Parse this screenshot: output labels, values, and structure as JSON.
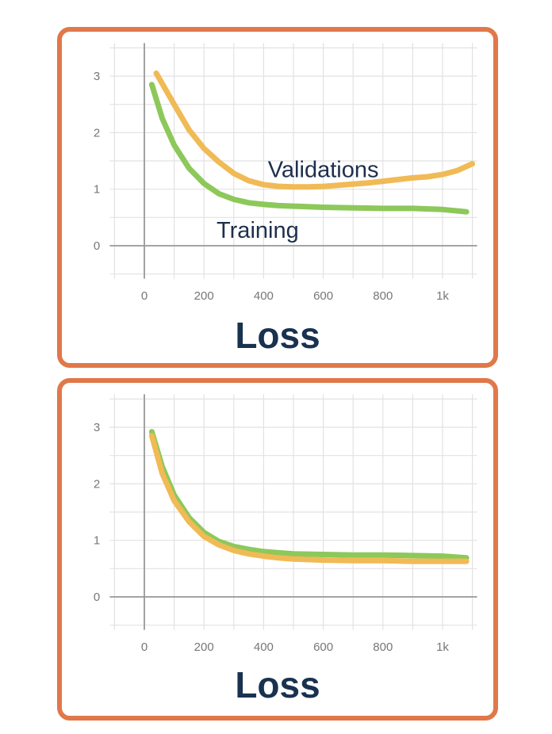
{
  "colors": {
    "frame": "#E0784A",
    "title": "#18324F",
    "training": "#8DC85A",
    "validation": "#F0BA55",
    "grid": "#E2E2E2",
    "axis": "#999999",
    "tick_text": "#777777",
    "series_label": "#1E2F4C"
  },
  "chart_data": [
    {
      "type": "line",
      "title": "Loss",
      "xlabel": "",
      "ylabel": "",
      "xlim": [
        -100,
        1100
      ],
      "ylim": [
        -0.5,
        3.5
      ],
      "x_ticks": [
        0,
        200,
        400,
        600,
        800,
        1000
      ],
      "x_tick_labels": [
        "0",
        "200",
        "400",
        "600",
        "800",
        "1k"
      ],
      "y_ticks": [
        0,
        1,
        2,
        3
      ],
      "y_tick_labels": [
        "0",
        "1",
        "2",
        "3"
      ],
      "grid": true,
      "series": [
        {
          "name": "Validations",
          "color": "#F0BA55",
          "x": [
            40,
            100,
            150,
            200,
            250,
            300,
            350,
            400,
            450,
            500,
            550,
            600,
            650,
            700,
            750,
            800,
            850,
            900,
            950,
            1000,
            1050,
            1100
          ],
          "y": [
            3.05,
            2.5,
            2.05,
            1.72,
            1.48,
            1.28,
            1.15,
            1.08,
            1.05,
            1.04,
            1.04,
            1.05,
            1.07,
            1.09,
            1.11,
            1.14,
            1.17,
            1.2,
            1.22,
            1.26,
            1.33,
            1.45
          ]
        },
        {
          "name": "Training",
          "color": "#8DC85A",
          "x": [
            25,
            60,
            100,
            150,
            200,
            250,
            300,
            350,
            400,
            450,
            500,
            600,
            700,
            800,
            900,
            1000,
            1080
          ],
          "y": [
            2.85,
            2.25,
            1.78,
            1.37,
            1.1,
            0.92,
            0.82,
            0.76,
            0.73,
            0.71,
            0.7,
            0.68,
            0.67,
            0.66,
            0.66,
            0.64,
            0.6
          ]
        }
      ]
    },
    {
      "type": "line",
      "title": "Loss",
      "xlabel": "",
      "ylabel": "",
      "xlim": [
        -100,
        1100
      ],
      "ylim": [
        -0.5,
        3.5
      ],
      "x_ticks": [
        0,
        200,
        400,
        600,
        800,
        1000
      ],
      "x_tick_labels": [
        "0",
        "200",
        "400",
        "600",
        "800",
        "1k"
      ],
      "y_ticks": [
        0,
        1,
        2,
        3
      ],
      "y_tick_labels": [
        "0",
        "1",
        "2",
        "3"
      ],
      "grid": true,
      "series": [
        {
          "color": "#8DC85A",
          "x": [
            25,
            60,
            100,
            150,
            200,
            250,
            300,
            350,
            400,
            450,
            500,
            600,
            700,
            800,
            900,
            1000,
            1080
          ],
          "y": [
            2.92,
            2.3,
            1.8,
            1.4,
            1.14,
            0.98,
            0.89,
            0.84,
            0.8,
            0.78,
            0.76,
            0.75,
            0.74,
            0.74,
            0.73,
            0.72,
            0.69
          ]
        },
        {
          "color": "#F0BA55",
          "x": [
            25,
            60,
            100,
            150,
            200,
            250,
            300,
            350,
            400,
            450,
            500,
            600,
            700,
            800,
            900,
            1000,
            1080
          ],
          "y": [
            2.85,
            2.18,
            1.7,
            1.33,
            1.07,
            0.92,
            0.82,
            0.76,
            0.72,
            0.69,
            0.67,
            0.65,
            0.64,
            0.64,
            0.63,
            0.63,
            0.63
          ]
        }
      ]
    }
  ]
}
